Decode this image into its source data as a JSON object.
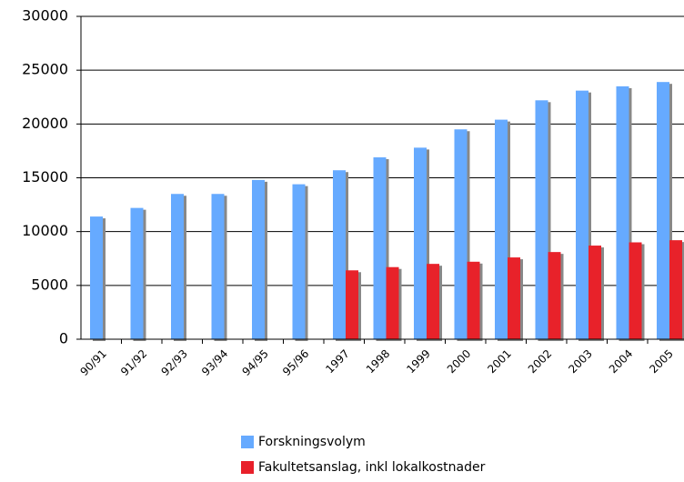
{
  "chart_data": {
    "type": "bar",
    "categories": [
      "90/91",
      "91/92",
      "92/93",
      "93/94",
      "94/95",
      "95/96",
      "1997",
      "1998",
      "1999",
      "2000",
      "2001",
      "2002",
      "2003",
      "2004",
      "2005"
    ],
    "series": [
      {
        "name": "Forskningsvolym",
        "color": "#66aaff",
        "values": [
          11400,
          12200,
          13500,
          13500,
          14800,
          14400,
          15700,
          16900,
          17800,
          19500,
          20400,
          22200,
          23100,
          23500,
          23900
        ]
      },
      {
        "name": "Fakultetsanslag, inkl lokalkostnader",
        "color": "#e8202a",
        "values": [
          null,
          null,
          null,
          null,
          null,
          null,
          6400,
          6700,
          7000,
          7200,
          7600,
          8100,
          8700,
          9000,
          9200
        ]
      }
    ],
    "ylim": [
      0,
      30000
    ],
    "yticks": [
      0,
      5000,
      10000,
      15000,
      20000,
      25000,
      30000
    ],
    "grid": true
  }
}
